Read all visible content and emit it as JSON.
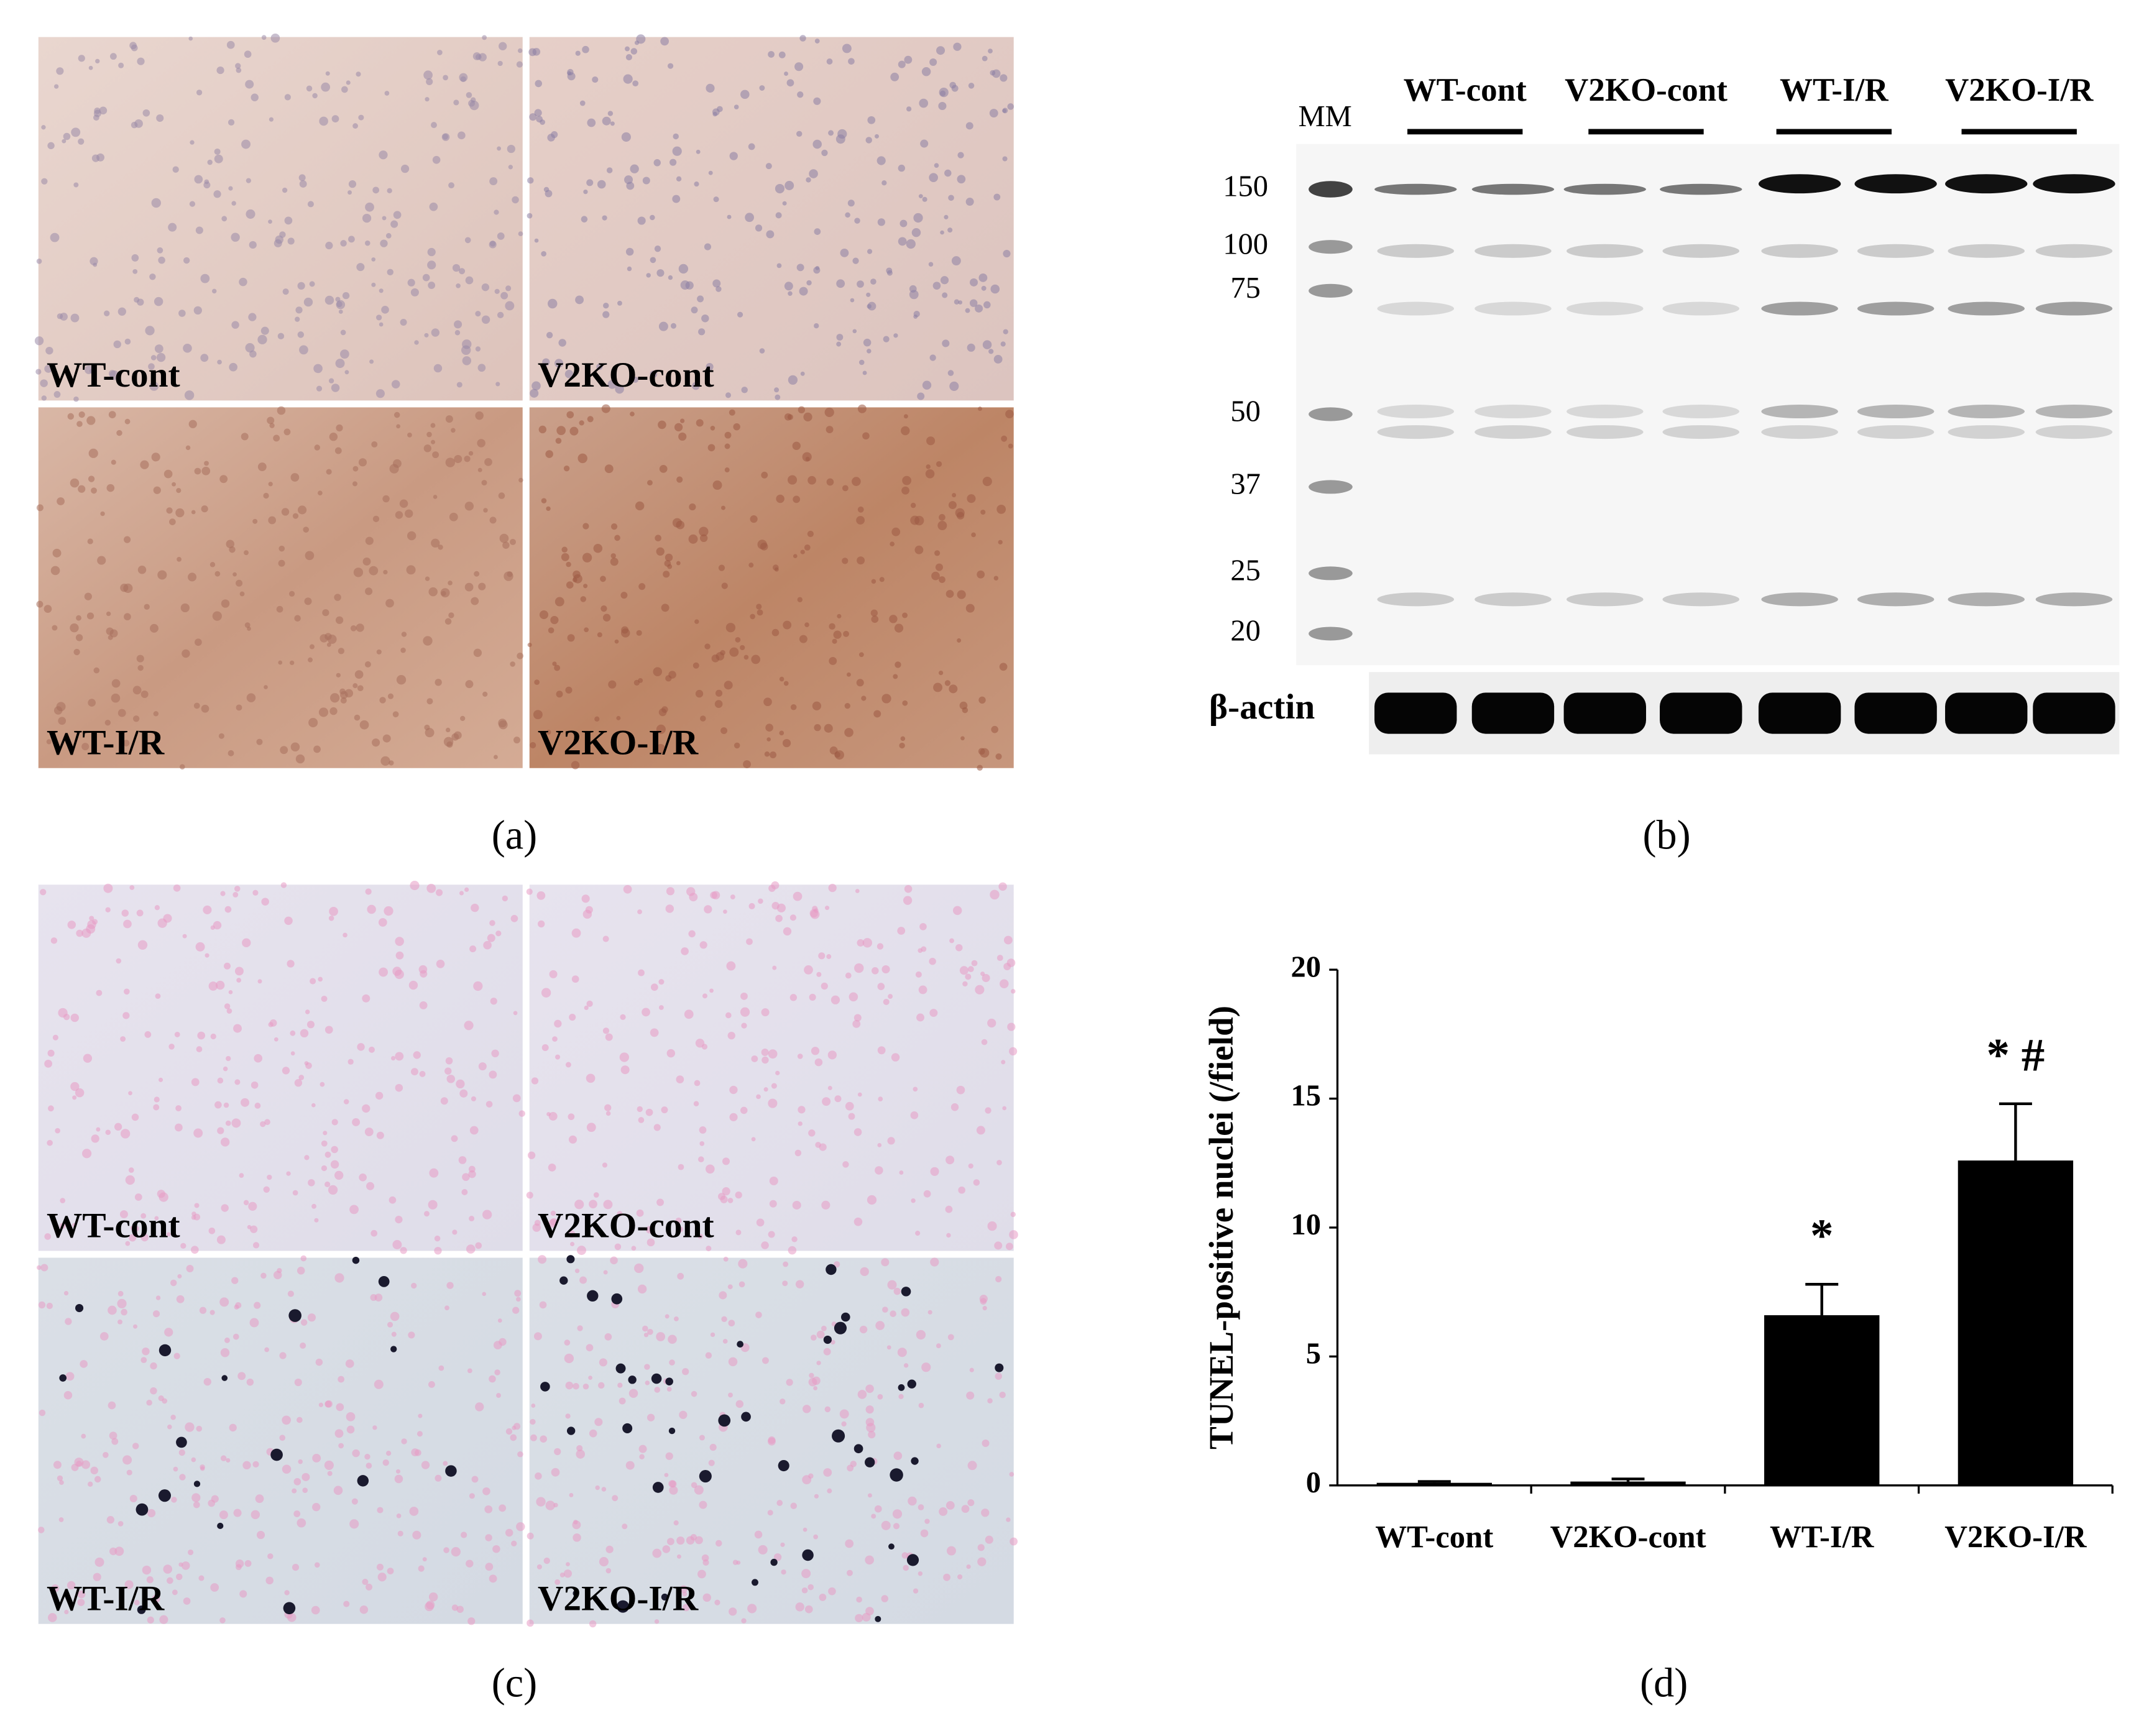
{
  "panel_a": {
    "labels": [
      "WT-cont",
      "V2KO-cont",
      "WT-I/R",
      "V2KO-I/R"
    ],
    "caption": "(a)"
  },
  "panel_b": {
    "marker_header": "MM",
    "groups": [
      "WT-cont",
      "V2KO-cont",
      "WT-I/R",
      "V2KO-I/R"
    ],
    "markers": [
      150,
      100,
      75,
      50,
      37,
      25,
      20
    ],
    "loading_label": "β-actin",
    "caption": "(b)"
  },
  "panel_c": {
    "labels": [
      "WT-cont",
      "V2KO-cont",
      "WT-I/R",
      "V2KO-I/R"
    ],
    "caption": "(c)"
  },
  "chart_data": {
    "type": "bar",
    "ylabel": "TUNEL-positive nuclei (/field)",
    "categories": [
      "WT-cont",
      "V2KO-cont",
      "WT-I/R",
      "V2KO-I/R"
    ],
    "values": [
      0.1,
      0.15,
      6.6,
      12.6
    ],
    "errors": [
      0.05,
      0.1,
      1.2,
      2.2
    ],
    "annotations": [
      null,
      null,
      "*",
      "* #"
    ],
    "color": "#000000",
    "ylim": [
      0,
      20
    ],
    "yticks": [
      0,
      5,
      10,
      15,
      20
    ],
    "caption": "(d)"
  }
}
